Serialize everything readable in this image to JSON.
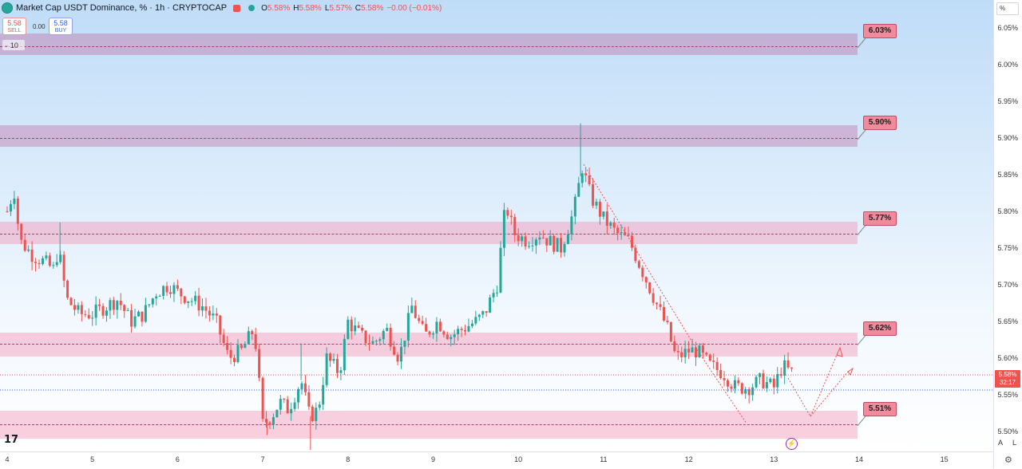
{
  "header": {
    "title": "Market Cap USDT Dominance, % · 1h · CRYPTOCAP",
    "ohlc": [
      {
        "key": "O",
        "value": "5.58%"
      },
      {
        "key": "H",
        "value": "5.58%"
      },
      {
        "key": "L",
        "value": "5.57%"
      },
      {
        "key": "C",
        "value": "5.58%"
      }
    ],
    "change": "−0.00 (−0.01%)",
    "currency_label": "%"
  },
  "trade": {
    "sell_price": "5.58",
    "sell_label": "SELL",
    "spread": "0.00",
    "buy_price": "5.58",
    "buy_label": "BUY",
    "indicator_toggle": "10"
  },
  "levels": [
    {
      "label": "6.03%",
      "price": 6.025,
      "zone": [
        6.013,
        6.042
      ]
    },
    {
      "label": "5.90%",
      "price": 5.9,
      "zone": [
        5.888,
        5.917
      ]
    },
    {
      "label": "5.77%",
      "price": 5.77,
      "zone": [
        5.755,
        5.786
      ]
    },
    {
      "label": "5.62%",
      "price": 5.62,
      "zone": [
        5.602,
        5.635
      ]
    },
    {
      "label": "5.51%",
      "price": 5.51,
      "zone": [
        5.49,
        5.528
      ]
    }
  ],
  "price_axis": [
    "6.05%",
    "6.00%",
    "5.95%",
    "5.90%",
    "5.85%",
    "5.80%",
    "5.75%",
    "5.70%",
    "5.65%",
    "5.60%",
    "5.55%",
    "5.50%"
  ],
  "time_axis": [
    "4",
    "5",
    "6",
    "7",
    "8",
    "9",
    "10",
    "11",
    "12",
    "13",
    "14",
    "15"
  ],
  "current_price": {
    "price": "5.58%",
    "countdown": "32:17"
  },
  "axis_buttons": {
    "auto": "A",
    "log": "L"
  },
  "colors": {
    "up": "#26a69a",
    "down": "#ef5350",
    "zone": "#f48fb1",
    "tag": "#f08a9c"
  },
  "chart_data": {
    "type": "candlestick",
    "interval": "1h",
    "x_ticks": [
      "4",
      "5",
      "6",
      "7",
      "8",
      "9",
      "10",
      "11",
      "12",
      "13",
      "14",
      "15"
    ],
    "ylim": [
      5.475,
      6.08
    ],
    "close_path": [
      [
        4.0,
        5.8
      ],
      [
        4.08,
        5.83
      ],
      [
        4.15,
        5.76
      ],
      [
        4.3,
        5.74
      ],
      [
        4.45,
        5.73
      ],
      [
        4.55,
        5.72
      ],
      [
        4.6,
        5.75
      ],
      [
        4.7,
        5.68
      ],
      [
        4.85,
        5.66
      ],
      [
        5.0,
        5.66
      ],
      [
        5.15,
        5.67
      ],
      [
        5.3,
        5.68
      ],
      [
        5.45,
        5.65
      ],
      [
        5.6,
        5.66
      ],
      [
        5.75,
        5.69
      ],
      [
        5.9,
        5.7
      ],
      [
        6.0,
        5.69
      ],
      [
        6.15,
        5.68
      ],
      [
        6.3,
        5.67
      ],
      [
        6.45,
        5.65
      ],
      [
        6.6,
        5.6
      ],
      [
        6.75,
        5.61
      ],
      [
        6.9,
        5.64
      ],
      [
        7.0,
        5.51
      ],
      [
        7.1,
        5.52
      ],
      [
        7.2,
        5.54
      ],
      [
        7.3,
        5.53
      ],
      [
        7.45,
        5.57
      ],
      [
        7.55,
        5.52
      ],
      [
        7.65,
        5.53
      ],
      [
        7.75,
        5.6
      ],
      [
        7.9,
        5.58
      ],
      [
        8.0,
        5.65
      ],
      [
        8.15,
        5.63
      ],
      [
        8.3,
        5.62
      ],
      [
        8.45,
        5.64
      ],
      [
        8.6,
        5.6
      ],
      [
        8.75,
        5.67
      ],
      [
        8.9,
        5.63
      ],
      [
        9.05,
        5.65
      ],
      [
        9.2,
        5.63
      ],
      [
        9.35,
        5.64
      ],
      [
        9.5,
        5.65
      ],
      [
        9.6,
        5.66
      ],
      [
        9.75,
        5.7
      ],
      [
        9.85,
        5.81
      ],
      [
        9.95,
        5.77
      ],
      [
        10.1,
        5.76
      ],
      [
        10.25,
        5.77
      ],
      [
        10.35,
        5.76
      ],
      [
        10.5,
        5.75
      ],
      [
        10.65,
        5.8
      ],
      [
        10.75,
        5.86
      ],
      [
        10.85,
        5.82
      ],
      [
        11.0,
        5.79
      ],
      [
        11.15,
        5.77
      ],
      [
        11.3,
        5.76
      ],
      [
        11.45,
        5.72
      ],
      [
        11.6,
        5.68
      ],
      [
        11.75,
        5.64
      ],
      [
        11.85,
        5.6
      ],
      [
        12.0,
        5.61
      ],
      [
        12.1,
        5.61
      ],
      [
        12.25,
        5.59
      ],
      [
        12.4,
        5.58
      ],
      [
        12.55,
        5.56
      ],
      [
        12.7,
        5.56
      ],
      [
        12.85,
        5.57
      ],
      [
        13.0,
        5.56
      ],
      [
        13.1,
        5.59
      ],
      [
        13.2,
        5.58
      ]
    ],
    "current_price": 5.58
  }
}
